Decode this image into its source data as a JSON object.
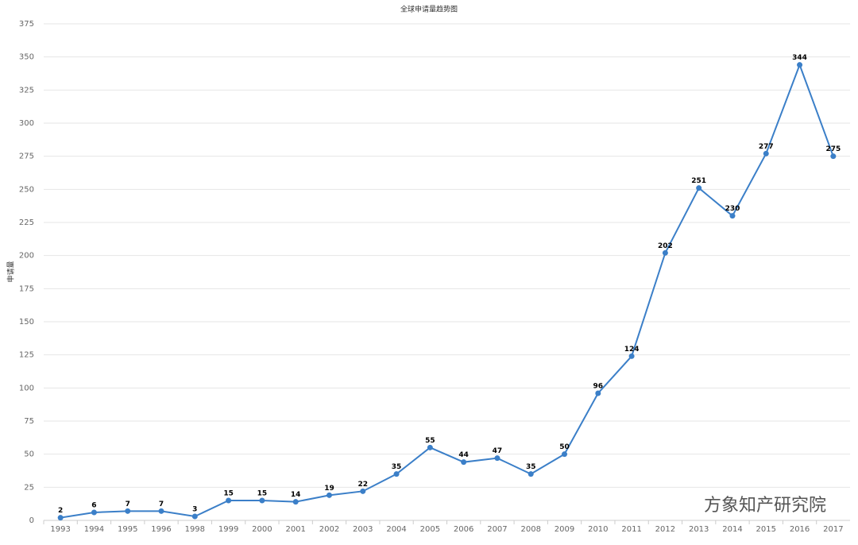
{
  "chart_data": {
    "type": "line",
    "title": "全球申请量趋势图",
    "y_label": "申请量",
    "categories": [
      "1993",
      "1994",
      "1995",
      "1996",
      "1998",
      "1999",
      "2000",
      "2001",
      "2002",
      "2003",
      "2004",
      "2005",
      "2006",
      "2007",
      "2008",
      "2009",
      "2010",
      "2011",
      "2012",
      "2013",
      "2014",
      "2015",
      "2016",
      "2017"
    ],
    "series": [
      {
        "name": "申请量",
        "color": "#3b7fc8",
        "values": [
          2,
          6,
          7,
          7,
          3,
          15,
          15,
          14,
          19,
          22,
          35,
          55,
          44,
          47,
          35,
          50,
          96,
          124,
          202,
          251,
          230,
          277,
          344,
          275
        ]
      }
    ],
    "ylim": [
      0,
      375
    ],
    "yticks": [
      0,
      25,
      50,
      75,
      100,
      125,
      150,
      175,
      200,
      225,
      250,
      275,
      300,
      325,
      350,
      375
    ],
    "grid": true,
    "watermark": "方象知产研究院"
  }
}
